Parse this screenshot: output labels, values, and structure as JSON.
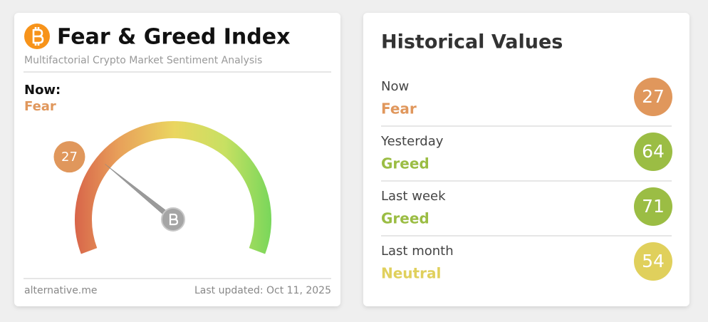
{
  "fear_greed": {
    "title": "Fear & Greed Index",
    "subtitle": "Multifactorial Crypto Market Sentiment Analysis",
    "now_label": "Now:",
    "now_classification": "Fear",
    "color": "#e0975c",
    "gauge": {
      "value": 27,
      "range": [
        0,
        100
      ]
    },
    "source": "alternative.me",
    "last_updated": "Last updated: Oct 11, 2025"
  },
  "historical": {
    "title": "Historical Values",
    "rows": [
      {
        "label": "Now",
        "classification": "Fear",
        "value": 27,
        "color": "#e0975c"
      },
      {
        "label": "Yesterday",
        "classification": "Greed",
        "value": 64,
        "color": "#9bbd44"
      },
      {
        "label": "Last week",
        "classification": "Greed",
        "value": 71,
        "color": "#9bbd44"
      },
      {
        "label": "Last month",
        "classification": "Neutral",
        "value": 54,
        "color": "#e0d05c"
      }
    ]
  }
}
